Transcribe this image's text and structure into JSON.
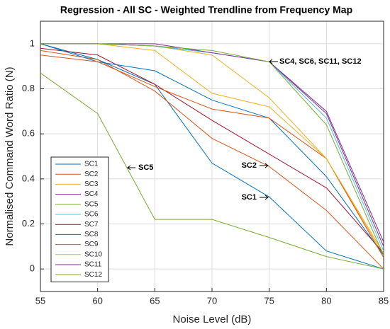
{
  "chart_data": {
    "type": "line",
    "title": "Regression - All SC - Weighted Trendline from Frequency Map",
    "x_label": "Noise Level (dB)",
    "y_label": "Normalised Command Word Ratio (N)",
    "x": [
      55,
      60,
      65,
      70,
      75,
      80,
      85
    ],
    "xlim": [
      55,
      85
    ],
    "xticks": [
      55,
      60,
      65,
      70,
      75,
      80,
      85
    ],
    "ylim": [
      -0.1,
      1.1
    ],
    "yticks": [
      0,
      0.2,
      0.4,
      0.6,
      0.8,
      1
    ],
    "grid": true,
    "legend": "lower left",
    "series": [
      {
        "name": "SC1",
        "color": "#0072BD",
        "values": [
          1.0,
          0.93,
          0.82,
          0.47,
          0.32,
          0.08,
          0.0
        ]
      },
      {
        "name": "SC2",
        "color": "#D95319",
        "values": [
          0.97,
          0.93,
          0.79,
          0.58,
          0.455,
          0.26,
          0.0
        ]
      },
      {
        "name": "SC3",
        "color": "#EDB120",
        "values": [
          1.0,
          1.0,
          0.99,
          0.95,
          0.76,
          0.49,
          0.06
        ]
      },
      {
        "name": "SC4",
        "color": "#7E2F8E",
        "values": [
          1.0,
          1.0,
          0.99,
          0.96,
          0.92,
          0.69,
          0.1
        ]
      },
      {
        "name": "SC5",
        "color": "#77AC30",
        "values": [
          0.87,
          0.69,
          0.22,
          0.22,
          0.14,
          0.055,
          0.0
        ]
      },
      {
        "name": "SC6",
        "color": "#4DBEEE",
        "values": [
          1.0,
          1.0,
          0.99,
          0.96,
          0.92,
          0.67,
          0.08
        ]
      },
      {
        "name": "SC7",
        "color": "#A2142F",
        "values": [
          0.98,
          0.95,
          0.82,
          0.66,
          0.51,
          0.36,
          0.07
        ]
      },
      {
        "name": "SC8",
        "color": "#0072BD",
        "values": [
          1.0,
          0.92,
          0.88,
          0.75,
          0.67,
          0.41,
          0.06
        ]
      },
      {
        "name": "SC9",
        "color": "#D95319",
        "values": [
          0.95,
          0.92,
          0.81,
          0.71,
          0.67,
          0.49,
          0.05
        ]
      },
      {
        "name": "SC10",
        "color": "#EDB120",
        "values": [
          1.0,
          1.0,
          0.97,
          0.78,
          0.72,
          0.49,
          0.07
        ]
      },
      {
        "name": "SC11",
        "color": "#7E2F8E",
        "values": [
          1.0,
          1.0,
          1.0,
          0.96,
          0.92,
          0.7,
          0.12
        ]
      },
      {
        "name": "SC12",
        "color": "#77AC30",
        "values": [
          1.0,
          1.0,
          0.99,
          0.97,
          0.92,
          0.64,
          0.06
        ]
      }
    ],
    "annotations": [
      "SC4, SC6, SC11, SC12",
      "SC5",
      "SC2",
      "SC1"
    ]
  }
}
